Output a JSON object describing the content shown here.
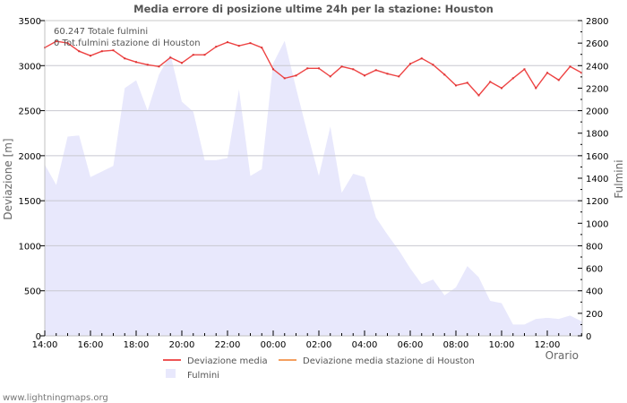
{
  "chart_data": {
    "type": "line",
    "title": "Media errore di posizione ultime 24h per la stazione: Houston",
    "xlabel": "Orario",
    "ylabel_left": "Deviazione  [m]",
    "ylabel_right": "Fulmini",
    "ylim_left": [
      0,
      3500
    ],
    "ylim_right": [
      0,
      2800
    ],
    "left_ticks": [
      0,
      500,
      1000,
      1500,
      2000,
      2500,
      3000,
      3500
    ],
    "right_ticks": [
      0,
      200,
      400,
      600,
      800,
      1000,
      1200,
      1400,
      1600,
      1800,
      2000,
      2200,
      2400,
      2600,
      2800
    ],
    "x_tick_labels": [
      "14:00",
      "16:00",
      "18:00",
      "20:00",
      "22:00",
      "00:00",
      "02:00",
      "04:00",
      "06:00",
      "08:00",
      "10:00",
      "12:00"
    ],
    "grid": true,
    "legend_position": "bottom",
    "annotations": [
      "60.247 Totale fulmini",
      "0 Tot.fulmini stazione di Houston"
    ],
    "x": [
      "14:00",
      "14:30",
      "15:00",
      "15:30",
      "16:00",
      "16:30",
      "17:00",
      "17:30",
      "18:00",
      "18:30",
      "19:00",
      "19:30",
      "20:00",
      "20:30",
      "21:00",
      "21:30",
      "22:00",
      "22:30",
      "23:00",
      "23:30",
      "00:00",
      "00:30",
      "01:00",
      "01:30",
      "02:00",
      "02:30",
      "03:00",
      "03:30",
      "04:00",
      "04:30",
      "05:00",
      "05:30",
      "06:00",
      "06:30",
      "07:00",
      "07:30",
      "08:00",
      "08:30",
      "09:00",
      "09:30",
      "10:00",
      "10:30",
      "11:00",
      "11:30",
      "12:00",
      "12:30",
      "13:00",
      "13:30"
    ],
    "series": [
      {
        "name": "Deviazione media",
        "axis": "left",
        "type": "line",
        "color": "#ee4444",
        "values": [
          3200,
          3270,
          3250,
          3160,
          3110,
          3160,
          3170,
          3080,
          3040,
          3010,
          2990,
          3090,
          3030,
          3120,
          3120,
          3210,
          3260,
          3220,
          3250,
          3200,
          2960,
          2860,
          2890,
          2970,
          2970,
          2880,
          2990,
          2960,
          2890,
          2950,
          2910,
          2880,
          3020,
          3080,
          3010,
          2900,
          2780,
          2810,
          2670,
          2820,
          2750,
          2860,
          2960,
          2750,
          2920,
          2840,
          2990,
          2920
        ]
      },
      {
        "name": "Deviazione media stazione di Houston",
        "axis": "left",
        "type": "line",
        "color": "#f4a060",
        "values": []
      },
      {
        "name": "Fulmini",
        "axis": "right",
        "type": "area",
        "color": "#e8e8fc",
        "values": [
          1520,
          1340,
          1770,
          1780,
          1410,
          1460,
          1510,
          2200,
          2270,
          2000,
          2320,
          2500,
          2080,
          1990,
          1560,
          1560,
          1580,
          2190,
          1420,
          1480,
          2420,
          2620,
          2200,
          1800,
          1420,
          1860,
          1270,
          1440,
          1410,
          1050,
          900,
          760,
          600,
          460,
          500,
          360,
          430,
          620,
          520,
          310,
          290,
          100,
          100,
          150,
          160,
          150,
          180,
          130
        ]
      }
    ]
  },
  "legend": {
    "items": [
      {
        "label": "Deviazione media",
        "color": "#ee5555"
      },
      {
        "label": "Deviazione media stazione di Houston",
        "color": "#f4a060"
      },
      {
        "label": "Fulmini",
        "color": "#e8e8fc"
      }
    ]
  },
  "credit": "www.lightningmaps.org"
}
